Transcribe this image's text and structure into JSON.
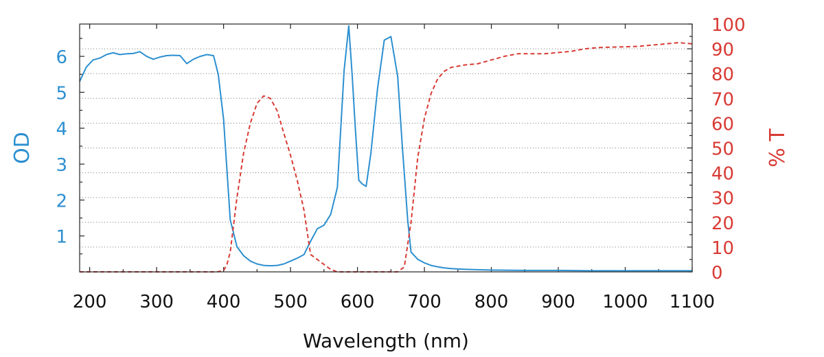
{
  "chart_data": {
    "type": "line",
    "title": "",
    "xlabel": "Wavelength (nm)",
    "ylabel": "OD",
    "y2label": "% T",
    "xlim": [
      185,
      1100
    ],
    "ylim": [
      0,
      6.9
    ],
    "y2lim": [
      0,
      100
    ],
    "x_ticks": [
      200,
      300,
      400,
      500,
      600,
      700,
      800,
      900,
      1000,
      1100
    ],
    "y_ticks": [
      1,
      2,
      3,
      4,
      5,
      6
    ],
    "y2_ticks": [
      0,
      10,
      20,
      30,
      40,
      50,
      60,
      70,
      80,
      90,
      100
    ],
    "grid": true,
    "colors": {
      "od": "#2b8fd0",
      "transmission": "#d83a34"
    },
    "series": [
      {
        "name": "OD",
        "axis": "left",
        "style": "solid",
        "x": [
          185,
          195,
          205,
          215,
          225,
          235,
          245,
          255,
          265,
          275,
          285,
          295,
          305,
          315,
          325,
          335,
          345,
          355,
          365,
          375,
          385,
          392,
          400,
          410,
          420,
          430,
          440,
          450,
          460,
          470,
          480,
          490,
          500,
          510,
          520,
          530,
          540,
          550,
          560,
          570,
          580,
          587,
          592,
          597,
          602,
          607,
          613,
          620,
          630,
          640,
          650,
          660,
          667,
          675,
          680,
          690,
          700,
          710,
          720,
          730,
          740,
          750,
          760,
          780,
          800,
          850,
          900,
          950,
          1000,
          1050,
          1100
        ],
        "values": [
          5.3,
          5.7,
          5.9,
          5.95,
          6.05,
          6.1,
          6.05,
          6.07,
          6.08,
          6.13,
          6.0,
          5.92,
          5.98,
          6.02,
          6.03,
          6.02,
          5.8,
          5.92,
          6.0,
          6.05,
          6.02,
          5.5,
          4.25,
          1.45,
          0.7,
          0.45,
          0.3,
          0.22,
          0.18,
          0.17,
          0.18,
          0.22,
          0.3,
          0.38,
          0.48,
          0.85,
          1.2,
          1.3,
          1.6,
          2.35,
          5.6,
          6.85,
          5.5,
          3.95,
          2.55,
          2.45,
          2.38,
          3.3,
          5.1,
          6.45,
          6.55,
          5.45,
          3.5,
          1.45,
          0.55,
          0.35,
          0.25,
          0.18,
          0.14,
          0.11,
          0.09,
          0.08,
          0.07,
          0.06,
          0.05,
          0.04,
          0.04,
          0.03,
          0.03,
          0.03,
          0.03
        ]
      },
      {
        "name": "% T",
        "axis": "right",
        "style": "dashed",
        "x": [
          185,
          300,
          390,
          400,
          405,
          410,
          420,
          430,
          440,
          450,
          460,
          470,
          480,
          490,
          500,
          510,
          520,
          530,
          540,
          550,
          560,
          570,
          580,
          600,
          620,
          640,
          660,
          670,
          680,
          690,
          700,
          710,
          720,
          730,
          740,
          750,
          760,
          780,
          800,
          820,
          840,
          860,
          880,
          900,
          920,
          940,
          960,
          980,
          1000,
          1020,
          1040,
          1060,
          1080,
          1100
        ],
        "values": [
          0,
          0,
          0,
          0.5,
          3,
          8,
          30,
          48,
          60,
          68,
          71,
          70,
          65,
          56,
          47,
          37,
          25,
          7,
          5,
          3,
          1,
          0,
          0,
          0,
          0,
          0,
          0,
          2,
          20,
          46,
          62,
          72,
          78,
          81,
          82.5,
          83,
          83.5,
          84,
          85.5,
          87,
          88,
          88,
          88,
          88.5,
          89,
          90,
          90.5,
          90.7,
          90.8,
          91,
          91.5,
          92,
          92.5,
          92
        ]
      }
    ]
  }
}
